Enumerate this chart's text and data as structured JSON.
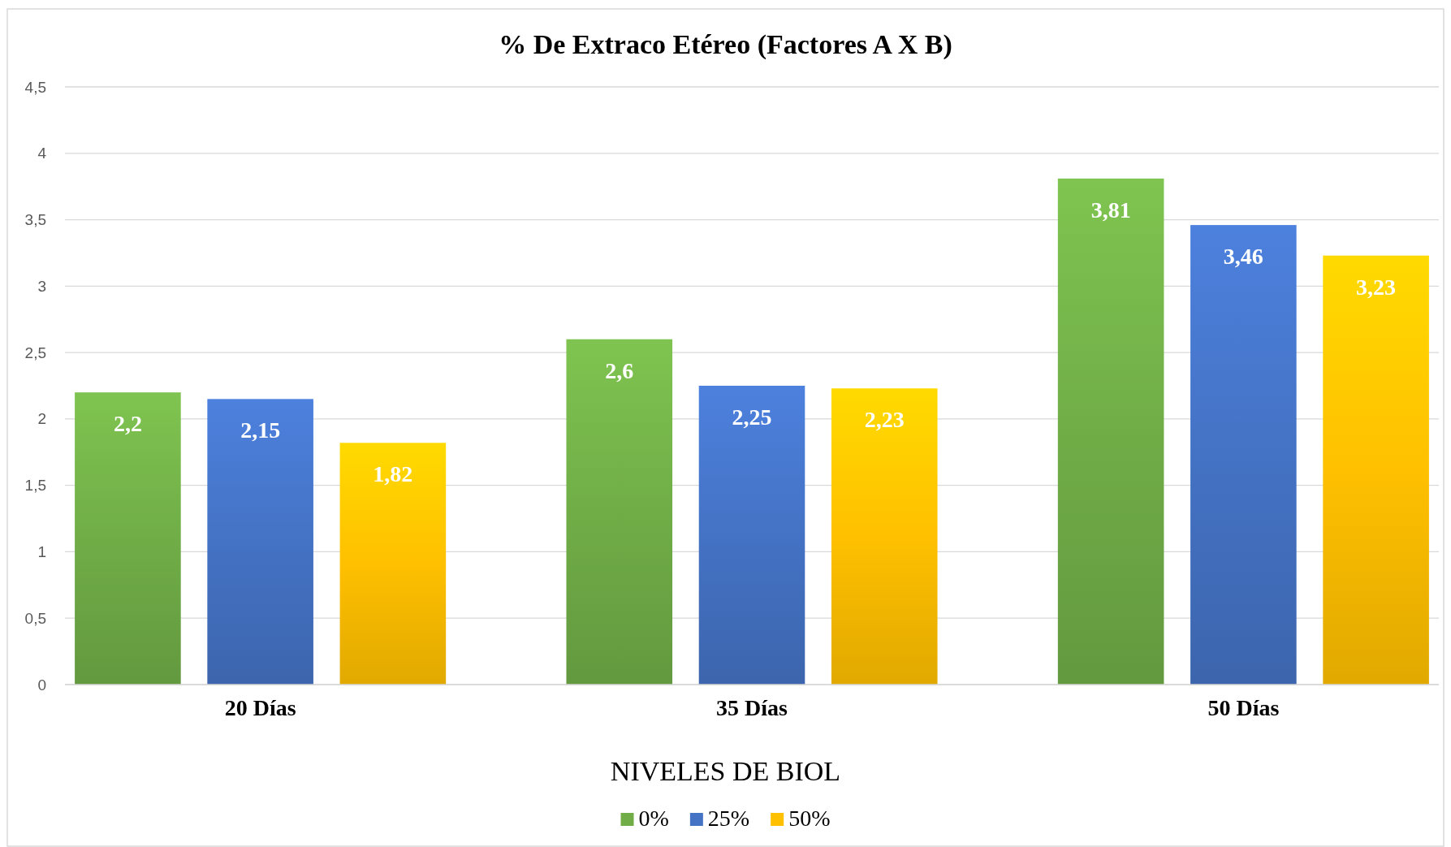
{
  "chart_data": {
    "type": "bar",
    "title": "% De Extraco Etéreo (Factores A X B)",
    "xlabel": "NIVELES DE BIOL",
    "categories": [
      "20 Días",
      "35 Días",
      "50 Días"
    ],
    "series": [
      {
        "name": "0%",
        "color": "#70ad47",
        "values": [
          2.2,
          2.6,
          3.81
        ],
        "value_labels": [
          "2,2",
          "2,6",
          "3,81"
        ]
      },
      {
        "name": "25%",
        "color": "#4472c4",
        "values": [
          2.15,
          2.25,
          3.46
        ],
        "value_labels": [
          "2,15",
          "2,25",
          "3,46"
        ]
      },
      {
        "name": "50%",
        "color": "#ffc000",
        "values": [
          1.82,
          2.23,
          3.23
        ],
        "value_labels": [
          "1,82",
          "2,23",
          "3,23"
        ]
      }
    ],
    "ylim": [
      0,
      4.5
    ],
    "yticks": [
      0,
      {
        "value": 0.5,
        "label": "0,5"
      },
      1,
      {
        "value": 1.5,
        "label": "1,5"
      },
      2,
      {
        "value": 2.5,
        "label": "2,5"
      },
      3,
      {
        "value": 3.5,
        "label": "3,5"
      },
      4,
      {
        "value": 4.5,
        "label": "4,5"
      }
    ],
    "grid": "y",
    "legend": "bottom"
  }
}
